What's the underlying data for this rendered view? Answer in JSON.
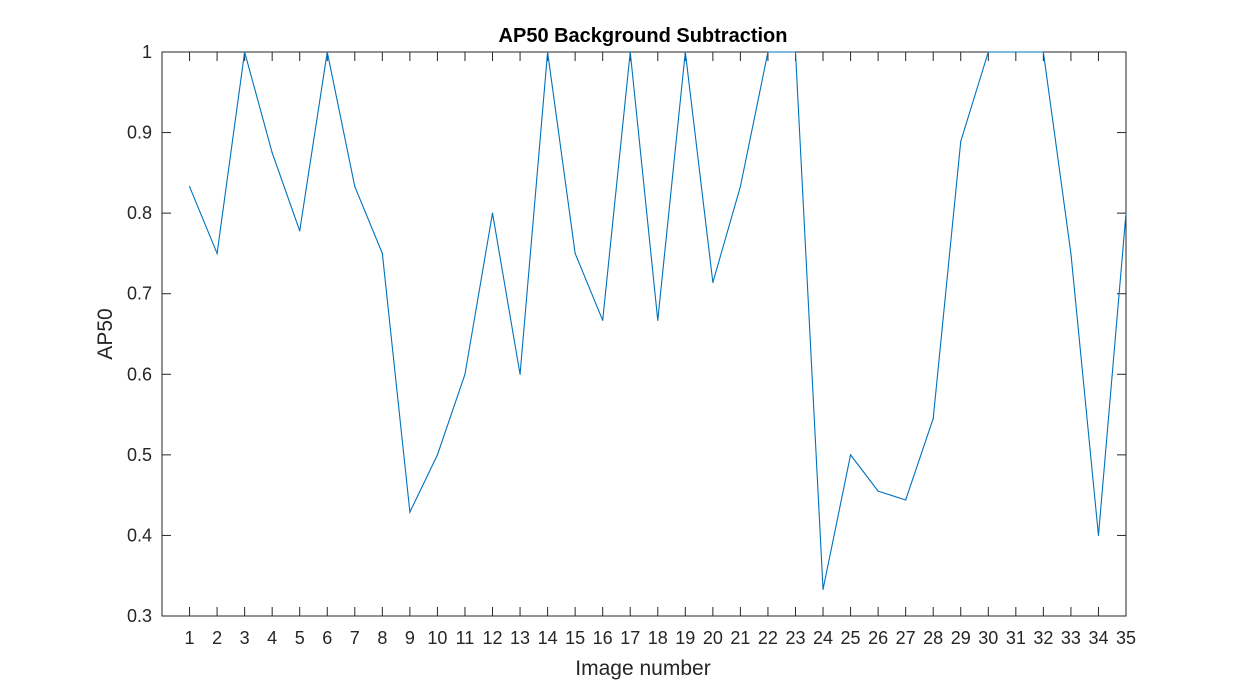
{
  "chart_data": {
    "type": "line",
    "title": "AP50 Background Subtraction",
    "xlabel": "Image number",
    "ylabel": "AP50",
    "xlim": [
      0,
      35
    ],
    "ylim": [
      0.3,
      1
    ],
    "x_ticks": [
      1,
      2,
      3,
      4,
      5,
      6,
      7,
      8,
      9,
      10,
      11,
      12,
      13,
      14,
      15,
      16,
      17,
      18,
      19,
      20,
      21,
      22,
      23,
      24,
      25,
      26,
      27,
      28,
      29,
      30,
      31,
      32,
      33,
      34,
      35
    ],
    "y_ticks": [
      0.3,
      0.4,
      0.5,
      0.6,
      0.7,
      0.8,
      0.9,
      1
    ],
    "y_tick_labels": [
      "0.3",
      "0.4",
      "0.5",
      "0.6",
      "0.7",
      "0.8",
      "0.9",
      "1"
    ],
    "grid": false,
    "series": [
      {
        "color": "#0072bd",
        "x": [
          1,
          2,
          3,
          4,
          5,
          6,
          7,
          8,
          9,
          10,
          11,
          12,
          13,
          14,
          15,
          16,
          17,
          18,
          19,
          20,
          21,
          22,
          23,
          24,
          25,
          26,
          27,
          28,
          29,
          30,
          31,
          32,
          33,
          34,
          35
        ],
        "values": [
          0.833,
          0.75,
          1.0,
          0.875,
          0.778,
          1.0,
          0.833,
          0.75,
          0.429,
          0.5,
          0.6,
          0.8,
          0.6,
          1.0,
          0.75,
          0.667,
          1.0,
          0.667,
          1.0,
          0.714,
          0.833,
          1.0,
          1.0,
          0.333,
          0.5,
          0.455,
          0.444,
          0.545,
          0.889,
          1.0,
          1.0,
          1.0,
          0.75,
          0.4,
          0.8
        ]
      }
    ]
  }
}
